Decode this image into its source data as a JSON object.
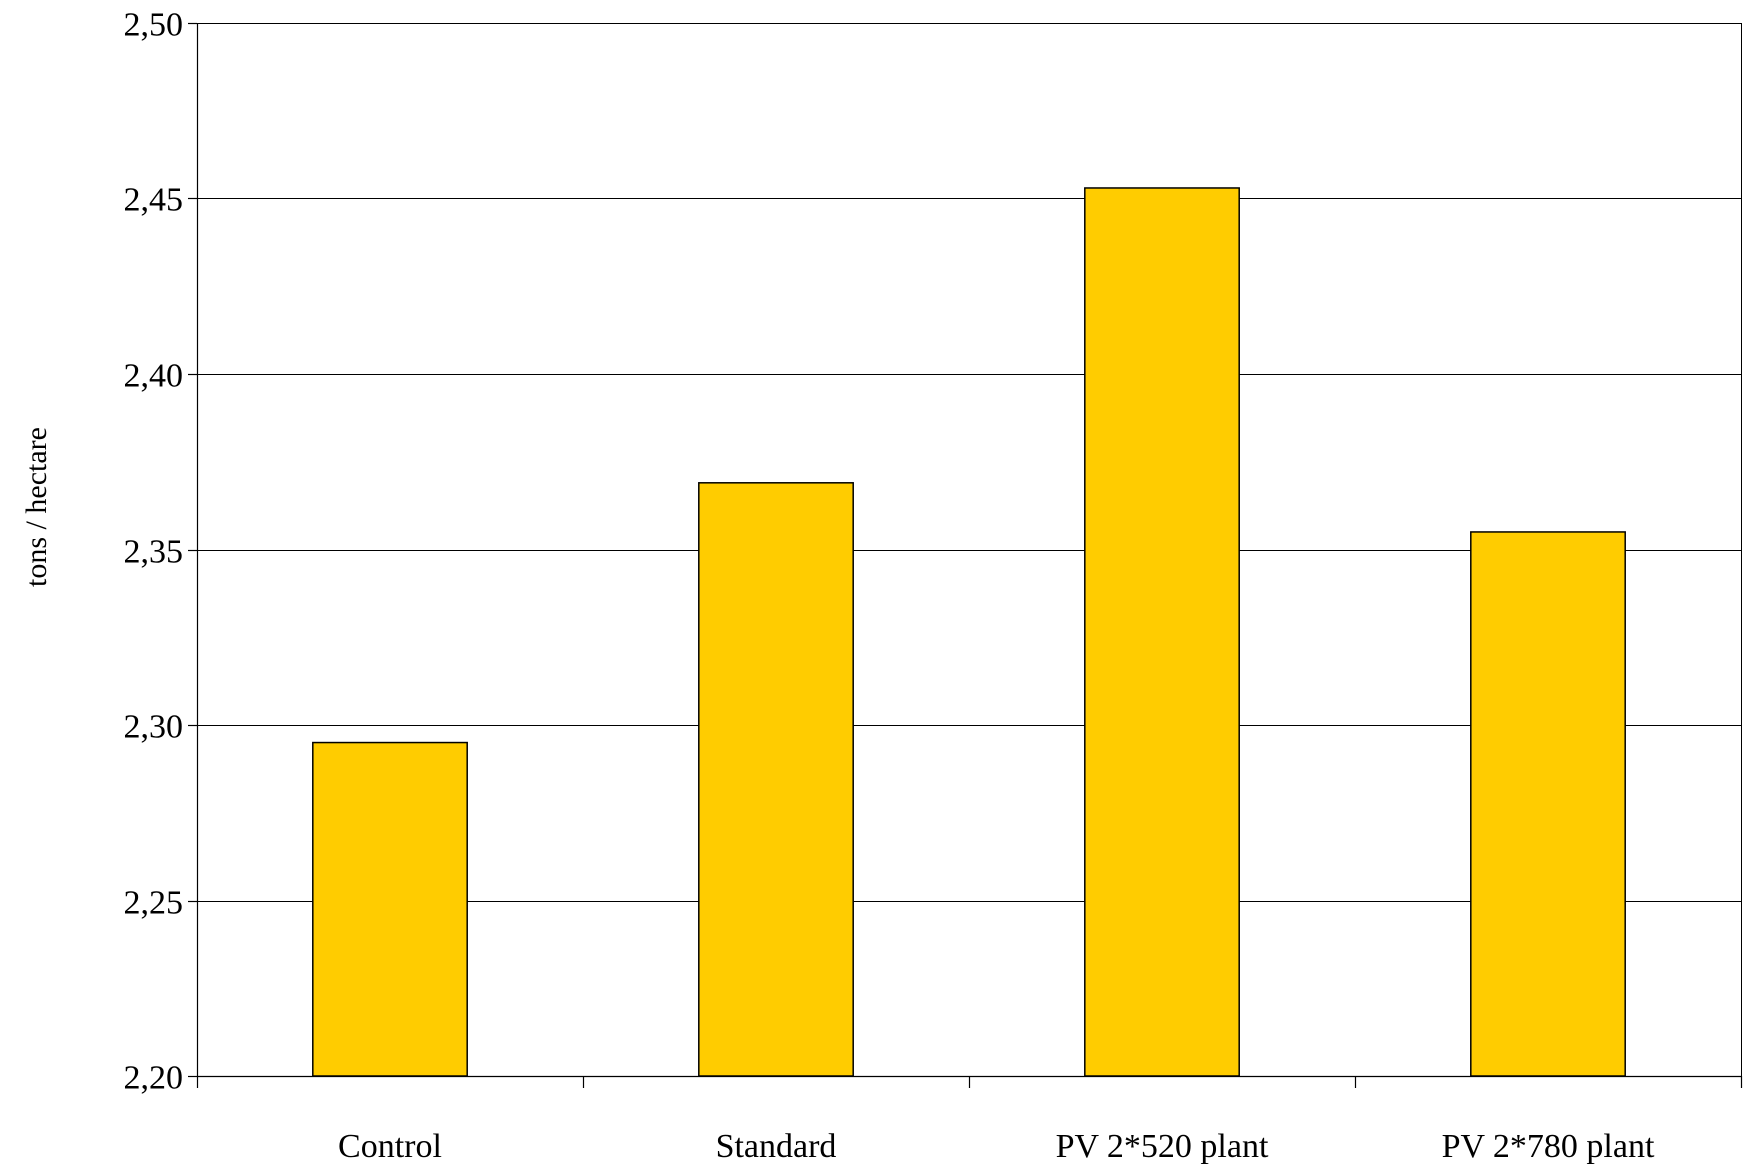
{
  "chart_data": {
    "type": "bar",
    "title": "",
    "xlabel": "",
    "ylabel": "tons / hectare",
    "categories": [
      "Control",
      "Standard",
      "PV 2*520 plant",
      "PV 2*780 plant"
    ],
    "values": [
      2.295,
      2.369,
      2.453,
      2.355
    ],
    "ylim": [
      2.2,
      2.5
    ],
    "yticks": [
      2.2,
      2.25,
      2.3,
      2.35,
      2.4,
      2.45,
      2.5
    ],
    "ytick_labels": [
      "2,20",
      "2,25",
      "2,30",
      "2,35",
      "2,40",
      "2,45",
      "2,50"
    ],
    "grid": "horizontal",
    "legend": "none",
    "colors": {
      "bar_fill": "#FFCC00",
      "bar_stroke": "#000000",
      "grid": "#000000",
      "axis": "#000000",
      "background": "#FFFFFF"
    }
  }
}
